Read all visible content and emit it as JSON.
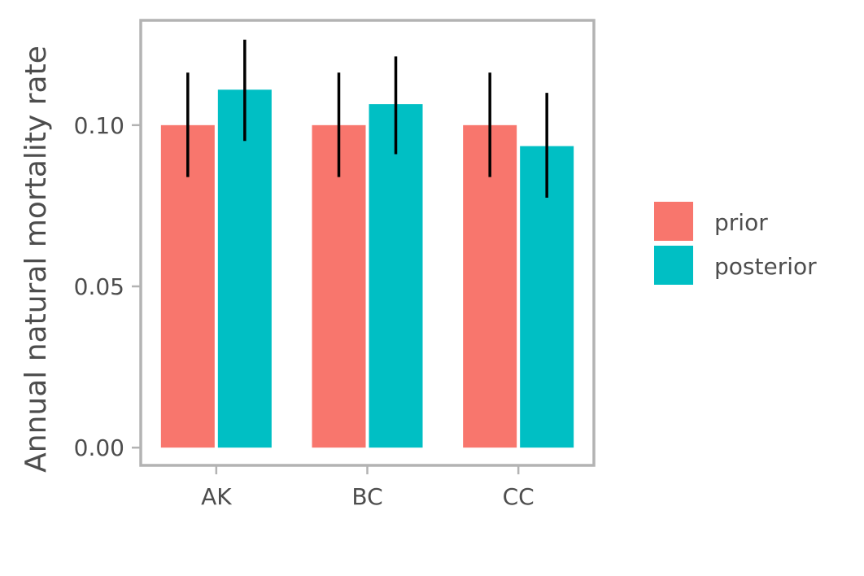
{
  "chart_data": {
    "type": "bar",
    "title": "",
    "xlabel": "",
    "ylabel": "Annual natural mortality rate",
    "categories": [
      "AK",
      "BC",
      "CC"
    ],
    "yticks": [
      "0.00",
      "0.05",
      "0.10"
    ],
    "ytick_values": [
      0.0,
      0.05,
      0.1
    ],
    "ylim": [
      -0.0055,
      0.1325
    ],
    "grid": false,
    "legend_position": "right",
    "series": [
      {
        "name": "prior",
        "color": "#F8766D",
        "values": [
          0.1,
          0.1,
          0.1
        ],
        "err_low": [
          0.0839,
          0.0839,
          0.0839
        ],
        "err_high": [
          0.1163,
          0.1163,
          0.1163
        ]
      },
      {
        "name": "posterior",
        "color": "#00BFC4",
        "values": [
          0.111,
          0.1065,
          0.0935
        ],
        "err_low": [
          0.0951,
          0.091,
          0.0775
        ],
        "err_high": [
          0.1265,
          0.1213,
          0.11
        ]
      }
    ]
  }
}
